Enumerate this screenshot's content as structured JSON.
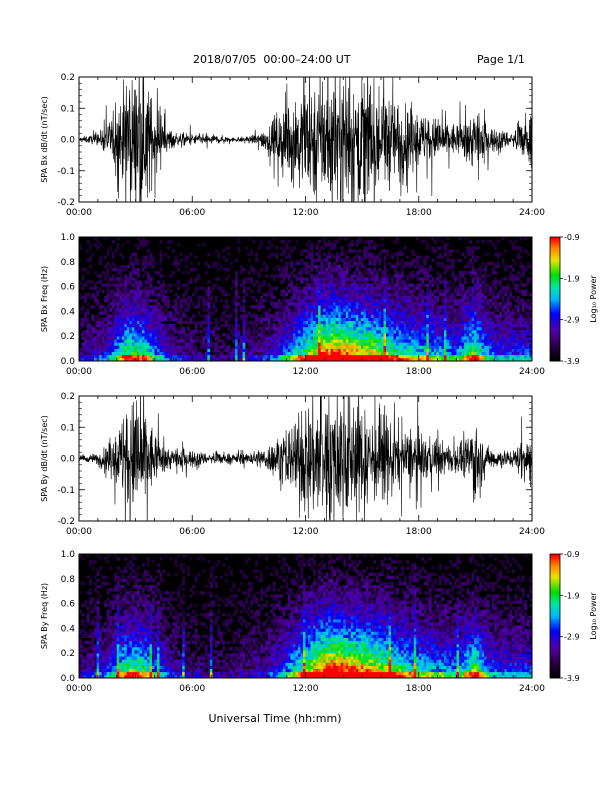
{
  "header": {
    "title": "2018/07/05  00:00–24:00 UT",
    "page": "Page 1/1"
  },
  "chart_data": [
    {
      "type": "line",
      "ylabel": "SPA Bx dB/dt (nT/sec)",
      "xlim": [
        0,
        24
      ],
      "ylim": [
        -0.2,
        0.2
      ],
      "xticks": [
        "00:00",
        "06:00",
        "12:00",
        "18:00",
        "24:00"
      ],
      "yticks": [
        "-0.2",
        "-0.1",
        "0.0",
        "0.1",
        "0.2"
      ],
      "x_hours": [
        0,
        1,
        1.5,
        2,
        2.5,
        3,
        3.5,
        4,
        4.5,
        5,
        6,
        7,
        8,
        9,
        10,
        10.5,
        11,
        11.5,
        12,
        12.5,
        13,
        13.5,
        14,
        14.5,
        15,
        15.5,
        16,
        16.5,
        17,
        17.5,
        18,
        18.5,
        19,
        19.5,
        20,
        20.5,
        21,
        21.5,
        22,
        23,
        24
      ],
      "envelope": [
        0.01,
        0.02,
        0.06,
        0.12,
        0.22,
        0.25,
        0.24,
        0.12,
        0.05,
        0.03,
        0.02,
        0.02,
        0.01,
        0.01,
        0.05,
        0.1,
        0.15,
        0.18,
        0.2,
        0.25,
        0.25,
        0.25,
        0.25,
        0.25,
        0.25,
        0.22,
        0.2,
        0.18,
        0.14,
        0.12,
        0.1,
        0.09,
        0.08,
        0.07,
        0.06,
        0.08,
        0.12,
        0.06,
        0.04,
        0.03,
        0.1
      ]
    },
    {
      "type": "heatmap",
      "ylabel": "SPA Bx Freq (Hz)",
      "xlim": [
        0,
        24
      ],
      "ylim": [
        0,
        1.0
      ],
      "xticks": [
        "00:00",
        "06:00",
        "12:00",
        "18:00",
        "24:00"
      ],
      "yticks": [
        "0.0",
        "0.2",
        "0.4",
        "0.6",
        "0.8",
        "1.0"
      ],
      "colorbar": {
        "label": "Log₁₀ Power",
        "range": [
          -3.9,
          -0.9
        ],
        "ticks": [
          "-3.9",
          "-2.9",
          "-1.9",
          "-0.9"
        ]
      },
      "activity_hours": [
        0,
        1.4,
        2,
        2.5,
        3,
        3.5,
        4,
        5,
        6,
        8,
        10,
        11,
        12,
        12.5,
        13,
        13.5,
        14,
        15,
        16,
        17,
        18,
        19,
        20,
        21,
        21.5,
        22,
        24
      ],
      "activity_level": [
        0.15,
        0.25,
        0.4,
        0.55,
        0.55,
        0.5,
        0.35,
        0.2,
        0.15,
        0.12,
        0.2,
        0.35,
        0.55,
        0.65,
        0.75,
        0.8,
        0.75,
        0.7,
        0.6,
        0.5,
        0.45,
        0.4,
        0.35,
        0.6,
        0.4,
        0.3,
        0.3
      ]
    },
    {
      "type": "line",
      "ylabel": "SPA By dB/dt (nT/sec)",
      "xlim": [
        0,
        24
      ],
      "ylim": [
        -0.2,
        0.2
      ],
      "xticks": [
        "00:00",
        "06:00",
        "12:00",
        "18:00",
        "24:00"
      ],
      "yticks": [
        "-0.2",
        "-0.1",
        "0.0",
        "0.1",
        "0.2"
      ],
      "x_hours": [
        0,
        1,
        1.5,
        2,
        2.5,
        3,
        3.5,
        4,
        4.5,
        5,
        6,
        7,
        8,
        9,
        10,
        10.5,
        11,
        11.5,
        12,
        12.5,
        13,
        13.5,
        14,
        14.5,
        15,
        15.5,
        16,
        16.5,
        17,
        17.5,
        18,
        18.5,
        19,
        19.5,
        20,
        20.5,
        21,
        21.5,
        22,
        23,
        24
      ],
      "envelope": [
        0.01,
        0.02,
        0.05,
        0.1,
        0.2,
        0.23,
        0.2,
        0.1,
        0.05,
        0.04,
        0.03,
        0.02,
        0.02,
        0.02,
        0.05,
        0.08,
        0.12,
        0.16,
        0.2,
        0.25,
        0.25,
        0.25,
        0.25,
        0.22,
        0.2,
        0.18,
        0.16,
        0.14,
        0.12,
        0.1,
        0.09,
        0.08,
        0.07,
        0.06,
        0.05,
        0.07,
        0.2,
        0.05,
        0.04,
        0.03,
        0.12
      ]
    },
    {
      "type": "heatmap",
      "ylabel": "SPA By Freq (Hz)",
      "xlim": [
        0,
        24
      ],
      "ylim": [
        0,
        1.0
      ],
      "xticks": [
        "00:00",
        "06:00",
        "12:00",
        "18:00",
        "24:00"
      ],
      "yticks": [
        "0.0",
        "0.2",
        "0.4",
        "0.6",
        "0.8",
        "1.0"
      ],
      "colorbar": {
        "label": "Log₁₀ Power",
        "range": [
          -3.9,
          -0.9
        ],
        "ticks": [
          "-3.9",
          "-2.9",
          "-1.9",
          "-0.9"
        ]
      },
      "activity_hours": [
        0,
        1.4,
        2,
        2.5,
        3,
        3.5,
        4,
        5,
        6,
        8,
        10,
        11,
        12,
        12.5,
        13,
        13.5,
        14,
        15,
        16,
        17,
        18,
        19,
        20,
        21,
        21.5,
        22,
        24
      ],
      "activity_level": [
        0.15,
        0.25,
        0.4,
        0.55,
        0.55,
        0.5,
        0.35,
        0.2,
        0.15,
        0.12,
        0.2,
        0.35,
        0.6,
        0.7,
        0.8,
        0.85,
        0.8,
        0.75,
        0.65,
        0.55,
        0.45,
        0.4,
        0.35,
        0.6,
        0.4,
        0.3,
        0.3
      ]
    }
  ],
  "footer": {
    "xlabel": "Universal Time (hh:mm)"
  }
}
